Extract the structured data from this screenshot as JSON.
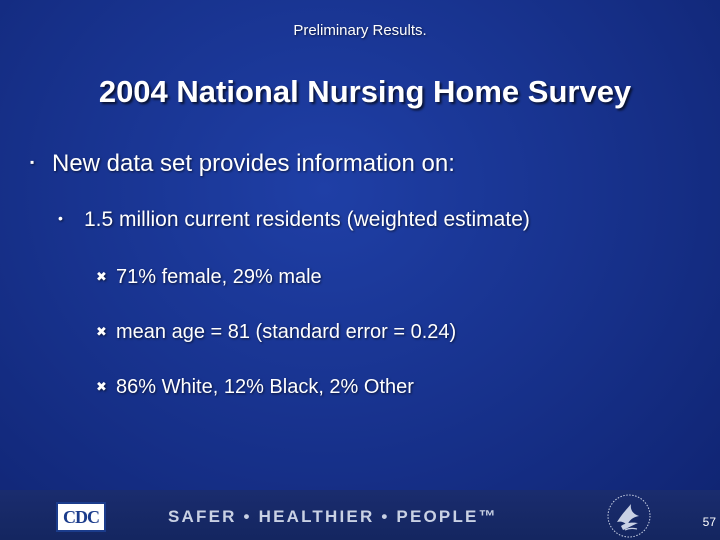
{
  "header": {
    "preliminary": "Preliminary Results."
  },
  "title": "2004 National Nursing Home Survey",
  "bullets": {
    "level1": {
      "marker": "▪",
      "text": "New data set provides information on:"
    },
    "level2": {
      "marker": "•",
      "text": "1.5 million current residents (weighted estimate)"
    },
    "level3": [
      {
        "marker": "✖",
        "text": "71% female, 29% male"
      },
      {
        "marker": "✖",
        "text": "mean age = 81 (standard error = 0.24)"
      },
      {
        "marker": "✖",
        "text": "86% White, 12% Black, 2% Other"
      }
    ]
  },
  "footer": {
    "logo_text": "CDC",
    "tagline": "SAFER • HEALTHIER • PEOPLE™",
    "page_number": "57"
  },
  "colors": {
    "background": "#18338f",
    "footer": "#142660",
    "text": "#ffffff",
    "tagline": "#c9d1e4"
  },
  "icons": {
    "left_logo": "cdc-logo",
    "right_logo": "hhs-eagle-logo"
  }
}
